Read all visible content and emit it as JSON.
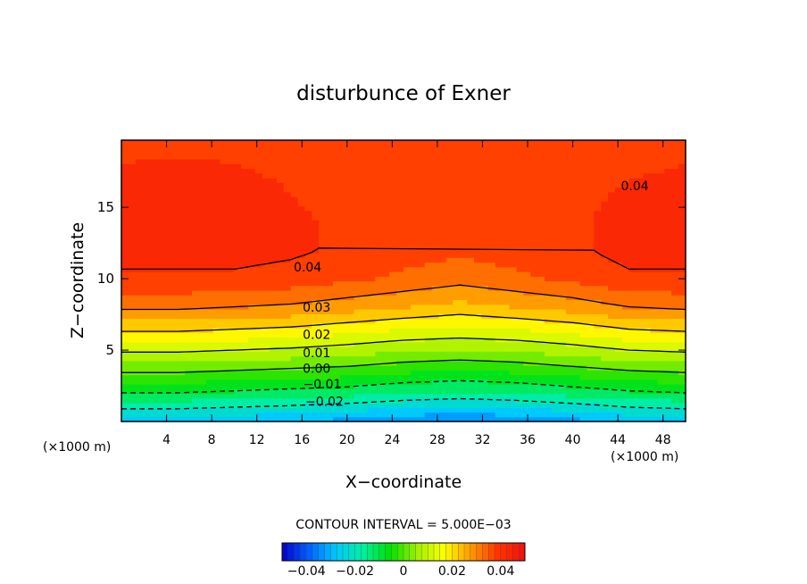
{
  "chart_data": {
    "type": "heatmap",
    "subtype": "filled-contour",
    "title": "disturbunce of Exner",
    "xlabel": "X−coordinate",
    "ylabel": "Z−coordinate",
    "x_unit_left": "(×1000 m)",
    "x_unit_right": "(×1000 m)",
    "xlim": [
      0,
      50
    ],
    "ylim": [
      0,
      19.7
    ],
    "x_ticks": [
      {
        "value": 4,
        "label": "4"
      },
      {
        "value": 8,
        "label": "8"
      },
      {
        "value": 12,
        "label": "12"
      },
      {
        "value": 16,
        "label": "16"
      },
      {
        "value": 20,
        "label": "20"
      },
      {
        "value": 24,
        "label": "24"
      },
      {
        "value": 28,
        "label": "28"
      },
      {
        "value": 32,
        "label": "32"
      },
      {
        "value": 36,
        "label": "36"
      },
      {
        "value": 40,
        "label": "40"
      },
      {
        "value": 44,
        "label": "44"
      },
      {
        "value": 48,
        "label": "48"
      }
    ],
    "y_ticks": [
      {
        "value": 5,
        "label": "5"
      },
      {
        "value": 10,
        "label": "10"
      },
      {
        "value": 15,
        "label": "15"
      }
    ],
    "contour_interval_text": "CONTOUR INTERVAL = 5.000E−03",
    "contour_interval": 0.005,
    "contour_labels": [
      {
        "value": 0.04,
        "label": "0.04",
        "x": 16.5,
        "y": 10.5
      },
      {
        "value": 0.04,
        "label": "0.04",
        "x": 45.5,
        "y": 16.2
      },
      {
        "value": 0.03,
        "label": "0.03",
        "x": 17.3,
        "y": 7.7
      },
      {
        "value": 0.02,
        "label": "0.02",
        "x": 17.3,
        "y": 5.8
      },
      {
        "value": 0.01,
        "label": "0.01",
        "x": 17.3,
        "y": 4.5
      },
      {
        "value": 0.0,
        "label": "0.00",
        "x": 17.3,
        "y": 3.4
      },
      {
        "value": -0.01,
        "label": "−0.01",
        "x": 17.8,
        "y": 2.3
      },
      {
        "value": -0.02,
        "label": "−0.02",
        "x": 18.0,
        "y": 1.1
      }
    ],
    "colorbar": {
      "range": [
        -0.05,
        0.05
      ],
      "ticks": [
        {
          "value": -0.04,
          "label": "−0.04"
        },
        {
          "value": -0.02,
          "label": "−0.02"
        },
        {
          "value": 0,
          "label": "0"
        },
        {
          "value": 0.02,
          "label": "0.02"
        },
        {
          "value": 0.04,
          "label": "0.04"
        }
      ]
    },
    "field": {
      "x": [
        0,
        5,
        10,
        15,
        20,
        25,
        30,
        35,
        40,
        45,
        50
      ],
      "z": [
        0,
        2,
        4,
        6,
        8,
        10,
        12,
        14,
        16,
        18,
        19.7
      ],
      "values": [
        [
          -0.028,
          -0.028,
          -0.029,
          -0.03,
          -0.032,
          -0.034,
          -0.036,
          -0.034,
          -0.032,
          -0.029,
          -0.028
        ],
        [
          -0.01,
          -0.01,
          -0.011,
          -0.012,
          -0.013,
          -0.015,
          -0.016,
          -0.015,
          -0.013,
          -0.011,
          -0.01
        ],
        [
          0.004,
          0.004,
          0.003,
          0.002,
          0.001,
          -0.001,
          -0.002,
          -0.001,
          0.001,
          0.003,
          0.004
        ],
        [
          0.018,
          0.018,
          0.017,
          0.016,
          0.014,
          0.012,
          0.011,
          0.012,
          0.014,
          0.017,
          0.018
        ],
        [
          0.031,
          0.031,
          0.03,
          0.029,
          0.027,
          0.025,
          0.023,
          0.025,
          0.027,
          0.03,
          0.031
        ],
        [
          0.039,
          0.039,
          0.039,
          0.038,
          0.036,
          0.034,
          0.032,
          0.034,
          0.036,
          0.039,
          0.039
        ],
        [
          0.042,
          0.042,
          0.042,
          0.041,
          0.039,
          0.037,
          0.036,
          0.037,
          0.039,
          0.042,
          0.042
        ],
        [
          0.042,
          0.042,
          0.042,
          0.041,
          0.039,
          0.037,
          0.036,
          0.037,
          0.039,
          0.042,
          0.042
        ],
        [
          0.042,
          0.043,
          0.042,
          0.04,
          0.038,
          0.037,
          0.036,
          0.037,
          0.038,
          0.041,
          0.042
        ],
        [
          0.04,
          0.041,
          0.04,
          0.039,
          0.038,
          0.037,
          0.037,
          0.037,
          0.038,
          0.039,
          0.04
        ],
        [
          0.038,
          0.038,
          0.038,
          0.038,
          0.038,
          0.039,
          0.039,
          0.039,
          0.038,
          0.038,
          0.038
        ]
      ]
    },
    "colors": {
      "stops": [
        "#0000c8",
        "#0060ff",
        "#00c8ff",
        "#00f0a0",
        "#00e000",
        "#a0f000",
        "#ffff00",
        "#ff9900",
        "#ff3300",
        "#f01010"
      ]
    }
  }
}
